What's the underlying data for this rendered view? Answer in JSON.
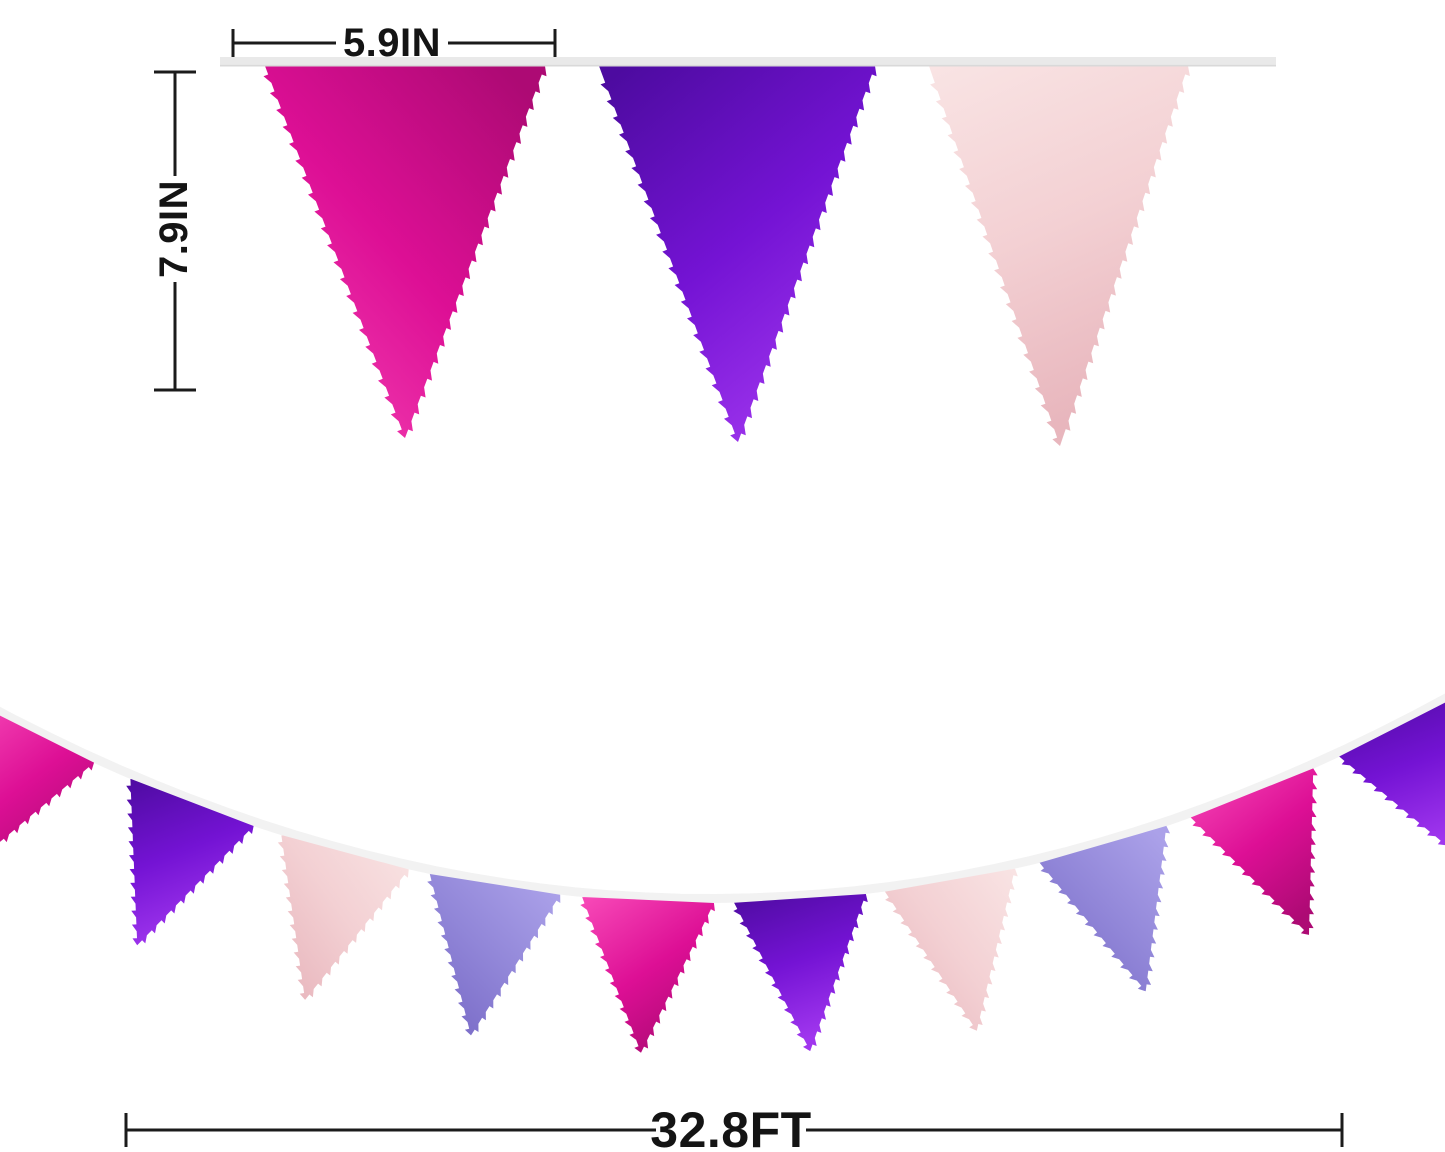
{
  "annotations": {
    "flag_width": "5.9IN",
    "flag_height": "7.9IN",
    "banner_length": "32.8FT"
  },
  "banner": {
    "ribbon_color": "#e9e9e9",
    "ribbon_edge_color": "#d9d9d9",
    "string_color": "#f2f2f2",
    "annotation_color": "#1b1b1b",
    "palette": {
      "magenta": {
        "name": "metallic hot pink",
        "light": "#f646b6",
        "base": "#dd0f95",
        "dark": "#ad0a74"
      },
      "purple": {
        "name": "metallic purple",
        "light": "#a036ee",
        "base": "#7413d4",
        "dark": "#4d0ba0"
      },
      "rosegold": {
        "name": "metallic rose gold",
        "light": "#f9e4e4",
        "base": "#f3d0d3",
        "dark": "#e8b6bd"
      },
      "lavender": {
        "name": "metallic lavender",
        "light": "#aba1e9",
        "base": "#9186d8",
        "dark": "#7566c4"
      }
    },
    "top_flags": [
      "magenta",
      "purple",
      "rosegold"
    ],
    "garland_flags": [
      "magenta",
      "purple",
      "rosegold",
      "lavender",
      "magenta",
      "purple",
      "rosegold",
      "lavender",
      "magenta",
      "purple"
    ]
  }
}
